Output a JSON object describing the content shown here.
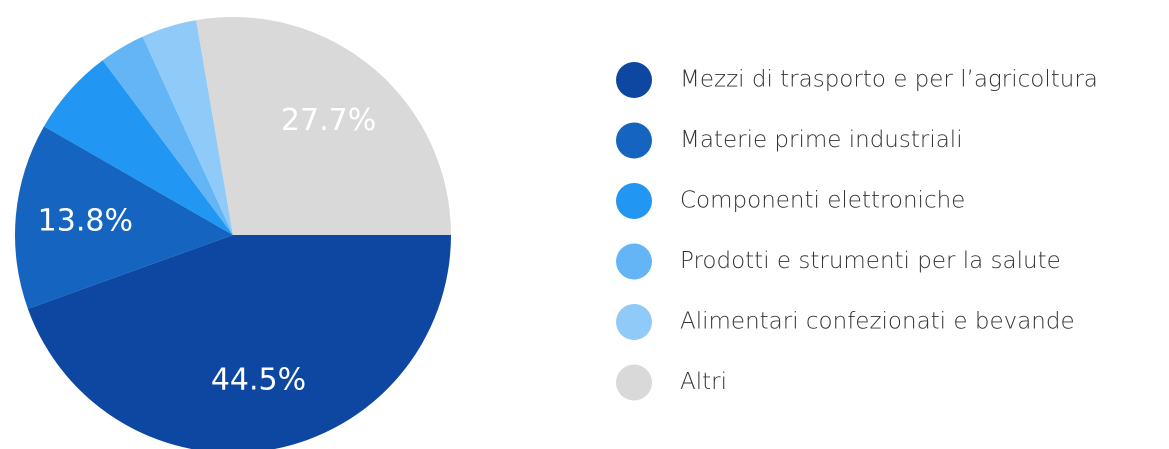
{
  "chart_data": {
    "type": "pie",
    "categories": [
      "Mezzi di trasporto e per l’agricoltura",
      "Materie prime industriali",
      "Componenti elettroniche",
      "Prodotti e strumenti per la salute",
      "Alimentari confezionati e bevande",
      "Altri"
    ],
    "values": [
      44.5,
      13.8,
      6.5,
      3.4,
      4.1,
      27.7
    ],
    "value_labels": [
      "44.5%",
      "13.8%",
      null,
      null,
      null,
      "27.7%"
    ],
    "colors": [
      "#0d47a1",
      "#1565c0",
      "#2196f3",
      "#64b5f6",
      "#90caf9",
      "#d9d9d9"
    ],
    "legend": "right"
  }
}
